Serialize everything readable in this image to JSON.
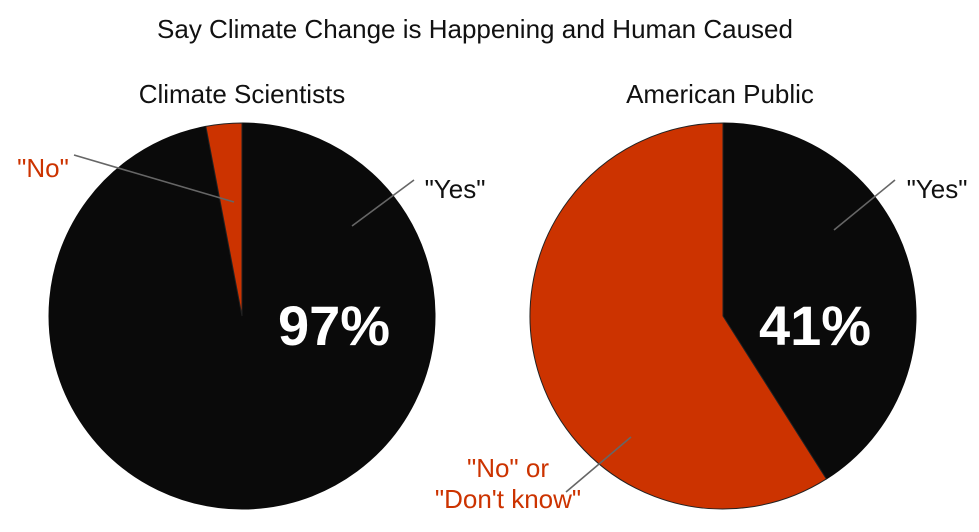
{
  "title": "Say Climate Change is Happening and Human Caused",
  "colors": {
    "yes": "#0a0a0a",
    "no": "#cc3300",
    "label_dark": "#111111",
    "label_no": "#cc3300",
    "percent_text": "#ffffff",
    "leader": "#666666",
    "background": "#ffffff"
  },
  "chart_data": [
    {
      "type": "pie",
      "title": "Climate Scientists",
      "slices": [
        {
          "label": "\"Yes\"",
          "value": 97,
          "color": "#0a0a0a"
        },
        {
          "label": "\"No\"",
          "value": 3,
          "color": "#cc3300"
        }
      ],
      "annotation": "97%",
      "start_angle": "12 o'clock",
      "direction": "clockwise"
    },
    {
      "type": "pie",
      "title": "American Public",
      "slices": [
        {
          "label": "\"Yes\"",
          "value": 41,
          "color": "#0a0a0a"
        },
        {
          "label": [
            "\"No\" or",
            "\"Don't know\""
          ],
          "value": 59,
          "color": "#cc3300"
        }
      ],
      "annotation": "41%",
      "start_angle": "12 o'clock",
      "direction": "clockwise"
    }
  ]
}
